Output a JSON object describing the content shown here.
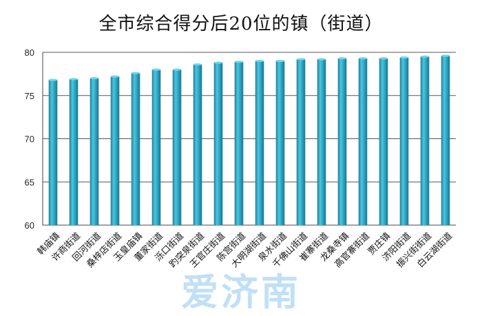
{
  "title": "全市综合得分后20位的镇（街道）",
  "watermark": "爱济南",
  "chart_data": {
    "type": "bar",
    "title": "全市综合得分后20位的镇（街道）",
    "xlabel": "",
    "ylabel": "",
    "ylim": [
      60,
      80
    ],
    "yticks": [
      60,
      65,
      70,
      75,
      80
    ],
    "grid": true,
    "legend": "none",
    "bar_color": "#2aa6c4",
    "categories": [
      "韩庙镇",
      "许商街道",
      "回河街道",
      "桑梓店街道",
      "玉皇庙镇",
      "董家街道",
      "泺口街道",
      "趵突泉街道",
      "王官庄街道",
      "陈宫街道",
      "大明湖街道",
      "泉水街道",
      "千佛山街道",
      "崔寨街道",
      "龙桑寺镇",
      "高官寨街道",
      "贾庄镇",
      "济阳街道",
      "振兴街街道",
      "白云湖街道"
    ],
    "values": [
      76.8,
      76.9,
      77.0,
      77.2,
      77.6,
      78.0,
      78.0,
      78.6,
      78.8,
      78.9,
      79.0,
      79.0,
      79.2,
      79.2,
      79.3,
      79.3,
      79.3,
      79.4,
      79.5,
      79.6
    ]
  }
}
